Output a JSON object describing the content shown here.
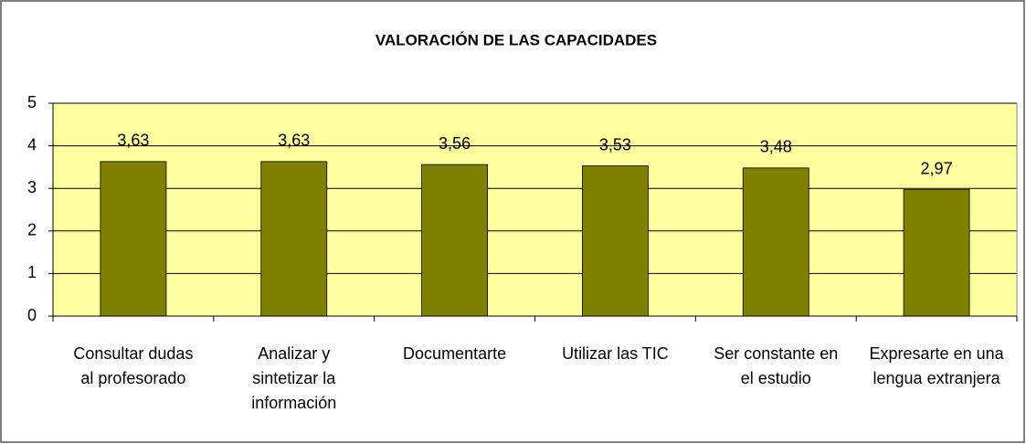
{
  "chart_data": {
    "type": "bar",
    "title": "VALORACIÓN DE LAS CAPACIDADES",
    "categories": [
      "Consultar dudas al profesorado",
      "Analizar y sintetizar la información",
      "Documentarte",
      "Utilizar las TIC",
      "Ser constante en el estudio",
      "Expresarte en una lengua extranjera"
    ],
    "values": [
      3.63,
      3.63,
      3.56,
      3.53,
      3.48,
      2.97
    ],
    "value_labels": [
      "3,63",
      "3,63",
      "3,56",
      "3,53",
      "3,48",
      "2,97"
    ],
    "color": "#808000",
    "plot_background": "#ffffa0",
    "ylim": [
      0,
      5
    ],
    "yticks": [
      0,
      1,
      2,
      3,
      4,
      5
    ],
    "grid": true
  }
}
